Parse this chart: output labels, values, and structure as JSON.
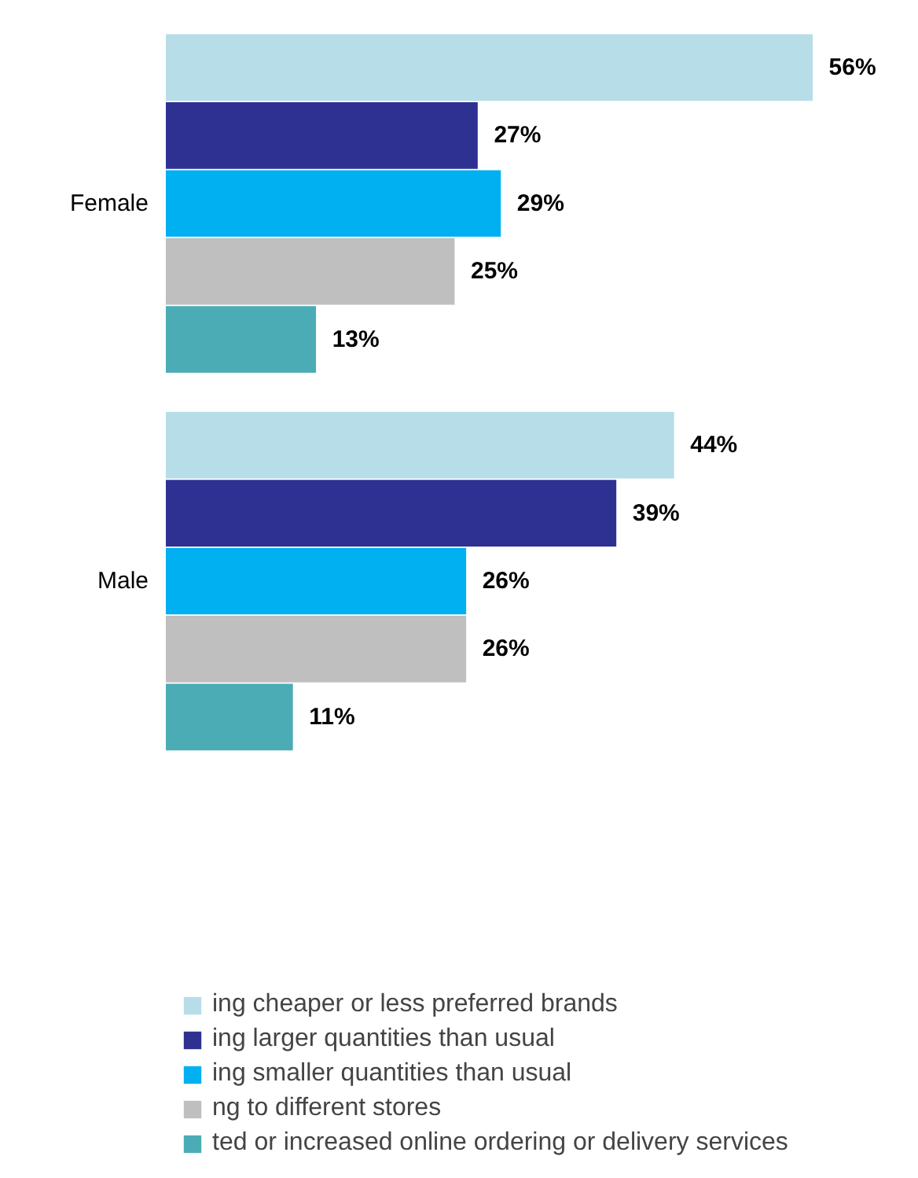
{
  "chart_data": {
    "type": "bar",
    "orientation": "horizontal",
    "categories": [
      "Female",
      "Male"
    ],
    "legend": "bottom",
    "grid": false,
    "series": [
      {
        "name": "ing cheaper or less preferred brands",
        "color": "#b7dde8",
        "values": [
          56,
          44
        ],
        "value_labels": [
          "56%",
          "44%"
        ]
      },
      {
        "name": "ing larger quantities than usual",
        "color": "#2e3192",
        "values": [
          27,
          39
        ],
        "value_labels": [
          "27%",
          "39%"
        ]
      },
      {
        "name": "ing smaller quantities than usual",
        "color": "#00b0f0",
        "values": [
          29,
          26
        ],
        "value_labels": [
          "29%",
          "26%"
        ]
      },
      {
        "name": "ng to different stores",
        "color": "#bfbfbf",
        "values": [
          25,
          26
        ],
        "value_labels": [
          "25%",
          "26%"
        ]
      },
      {
        "name": "ted or increased online ordering or delivery services",
        "color": "#4bacb6",
        "values": [
          13,
          11
        ],
        "value_labels": [
          "13%",
          "11%"
        ]
      }
    ]
  }
}
